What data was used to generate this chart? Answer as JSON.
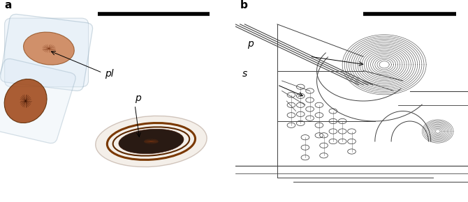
{
  "fig_width": 6.7,
  "fig_height": 2.9,
  "dpi": 100,
  "bg_color_left": "#bdd0de",
  "label_a": "a",
  "label_b": "b",
  "label_pl": "pl",
  "label_p": "p",
  "label_s": "s",
  "label_fontsize": 10,
  "scalebar_color": "#000000",
  "lc": "#404040"
}
